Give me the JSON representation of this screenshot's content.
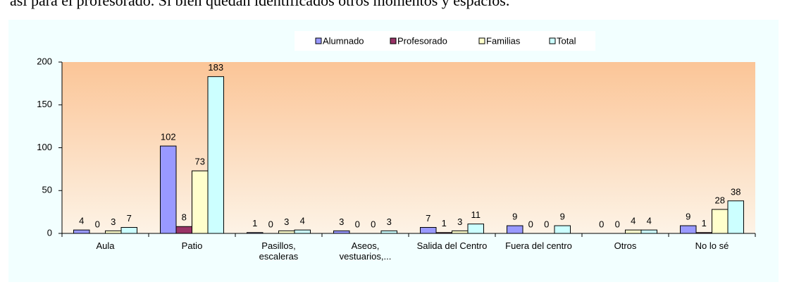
{
  "document": {
    "line": "así para el profesorado. Si bien quedan identificados otros momentos y espacios."
  },
  "chart_data": {
    "type": "bar",
    "categories": [
      "Aula",
      "Patio",
      "Pasillos,\nescaleras",
      "Aseos,\nvestuarios,...",
      "Salida del Centro",
      "Fuera del centro",
      "Otros",
      "No lo sé"
    ],
    "series": [
      {
        "name": "Alumnado",
        "color": "#9999ff",
        "values": [
          4,
          102,
          1,
          3,
          7,
          9,
          0,
          9
        ]
      },
      {
        "name": "Profesorado",
        "color": "#993366",
        "values": [
          0,
          8,
          0,
          0,
          1,
          0,
          0,
          1
        ]
      },
      {
        "name": "Familias",
        "color": "#ffffcc",
        "values": [
          3,
          73,
          3,
          0,
          3,
          0,
          4,
          28
        ]
      },
      {
        "name": "Total",
        "color": "#ccffff",
        "values": [
          7,
          183,
          4,
          3,
          11,
          9,
          4,
          38
        ]
      }
    ],
    "ylim": [
      0,
      200
    ],
    "yticks": [
      0,
      50,
      100,
      150,
      200
    ],
    "grid": false,
    "legend": "top"
  }
}
